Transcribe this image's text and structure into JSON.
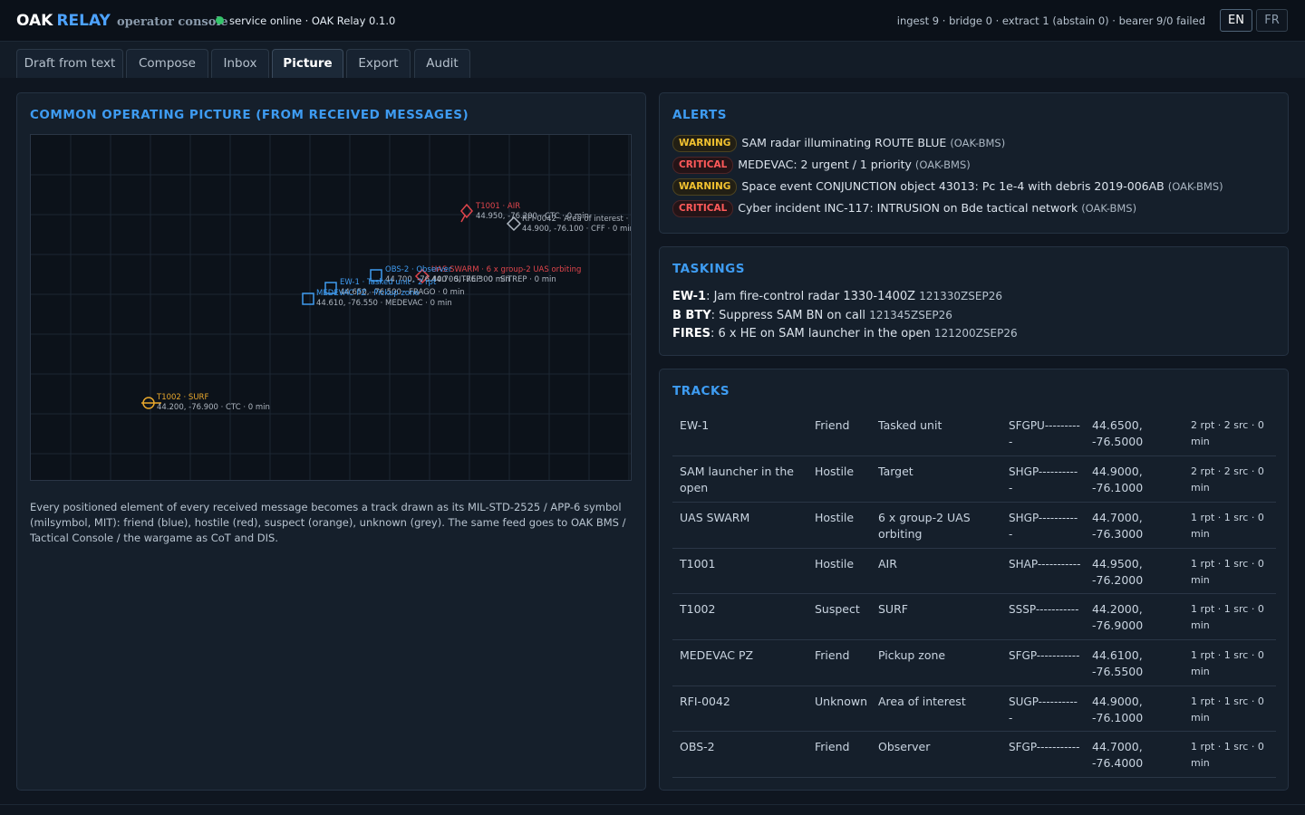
{
  "header": {
    "brand_oak": "OAK",
    "brand_relay": "RELAY",
    "brand_sub": "operator console",
    "status_text": "service online · OAK Relay 0.1.0",
    "counters": "ingest 9 · bridge 0 · extract 1 (abstain 0) · bearer 9/0 failed",
    "lang_en": "EN",
    "lang_fr": "FR",
    "status_color": "#34c46a"
  },
  "tabs": [
    {
      "label": "Draft from text"
    },
    {
      "label": "Compose"
    },
    {
      "label": "Inbox"
    },
    {
      "label": "Picture"
    },
    {
      "label": "Export"
    },
    {
      "label": "Audit"
    }
  ],
  "active_tab": "Picture",
  "cop": {
    "title": "COMMON OPERATING PICTURE (FROM RECEIVED MESSAGES)",
    "caption": "Every positioned element of every received message becomes a track drawn as its MIL-STD-2525 / APP-6 symbol (milsymbol, MIT): friend (blue), hostile (red), suspect (orange), unknown (grey). The same feed goes to OAK BMS / Tactical Console / the wargame as CoT and DIS.",
    "colors": {
      "friend": "#3f9bf0",
      "hostile": "#e0454c",
      "suspect": "#e8a72c",
      "unknown": "#aeb6c0"
    },
    "markers": [
      {
        "affil": "hostile",
        "shape": "air",
        "line1": "T1001 · AIR",
        "line2": "44.950, -76.200 · CTC · 0 min"
      },
      {
        "affil": "unknown",
        "shape": "diamond",
        "line1": "RFI-0042 · Area of interest · Targ",
        "line2": "44.900, -76.100 · CFF · 0 min"
      },
      {
        "affil": "hostile",
        "shape": "diamond",
        "line1": "UAS SWARM · 6 x group-2 UAS orbiting",
        "line2": "44.700, -76.300 · SITREP · 0 min"
      },
      {
        "affil": "friend",
        "shape": "square",
        "line1": "OBS-2 · Observer",
        "line2": "44.700, -76.400 · SITREP · 0 min"
      },
      {
        "affil": "friend",
        "shape": "square",
        "line1": "EW-1 · Tasked unit · 2 rpt",
        "line2": "44.650, -76.500 · FRAGO · 0 min"
      },
      {
        "affil": "friend",
        "shape": "square",
        "line1": "MEDEVAC PZ · Pickup zone",
        "line2": "44.610, -76.550 · MEDEVAC · 0 min"
      },
      {
        "affil": "suspect",
        "shape": "surface",
        "line1": "T1002 · SURF",
        "line2": "44.200, -76.900 · CTC · 0 min"
      }
    ]
  },
  "alerts": {
    "title": "ALERTS",
    "items": [
      {
        "level": "WARNING",
        "text": "SAM radar illuminating ROUTE BLUE",
        "source": "(OAK-BMS)"
      },
      {
        "level": "CRITICAL",
        "text": "MEDEVAC: 2 urgent / 1 priority",
        "source": "(OAK-BMS)"
      },
      {
        "level": "WARNING",
        "text": "Space event CONJUNCTION object 43013: Pc 1e-4 with debris 2019-006AB",
        "source": "(OAK-BMS)"
      },
      {
        "level": "CRITICAL",
        "text": "Cyber incident INC-117: INTRUSION on Bde tactical network",
        "source": "(OAK-BMS)"
      }
    ]
  },
  "taskings": {
    "title": "TASKINGS",
    "items": [
      {
        "unit": "EW-1",
        "text": ": Jam fire-control radar 1330-1400Z ",
        "dtg": "121330ZSEP26"
      },
      {
        "unit": "B BTY",
        "text": ": Suppress SAM BN on call ",
        "dtg": "121345ZSEP26"
      },
      {
        "unit": "FIRES",
        "text": ": 6 x HE on SAM launcher in the open ",
        "dtg": "121200ZSEP26"
      }
    ]
  },
  "tracks": {
    "title": "TRACKS",
    "rows": [
      {
        "name": "EW-1",
        "affil": "Friend",
        "desc": "Tasked unit",
        "sidc": "SFGPU----------",
        "pos": "44.6500, -76.5000",
        "meta": "2 rpt · 2 src · 0 min"
      },
      {
        "name": "SAM launcher in the open",
        "affil": "Hostile",
        "desc": "Target",
        "sidc": "SHGP-----------",
        "pos": "44.9000, -76.1000",
        "meta": "2 rpt · 2 src · 0 min"
      },
      {
        "name": "UAS SWARM",
        "affil": "Hostile",
        "desc": "6 x group-2 UAS orbiting",
        "sidc": "SHGP-----------",
        "pos": "44.7000, -76.3000",
        "meta": "1 rpt · 1 src · 0 min"
      },
      {
        "name": "T1001",
        "affil": "Hostile",
        "desc": "AIR",
        "sidc": "SHAP-----------",
        "pos": "44.9500, -76.2000",
        "meta": "1 rpt · 1 src · 0 min"
      },
      {
        "name": "T1002",
        "affil": "Suspect",
        "desc": "SURF",
        "sidc": "SSSP-----------",
        "pos": "44.2000, -76.9000",
        "meta": "1 rpt · 1 src · 0 min"
      },
      {
        "name": "MEDEVAC PZ",
        "affil": "Friend",
        "desc": "Pickup zone",
        "sidc": "SFGP-----------",
        "pos": "44.6100, -76.5500",
        "meta": "1 rpt · 1 src · 0 min"
      },
      {
        "name": "RFI-0042",
        "affil": "Unknown",
        "desc": "Area of interest",
        "sidc": "SUGP-----------",
        "pos": "44.9000, -76.1000",
        "meta": "1 rpt · 1 src · 0 min"
      },
      {
        "name": "OBS-2",
        "affil": "Friend",
        "desc": "Observer",
        "sidc": "SFGP-----------",
        "pos": "44.7000, -76.4000",
        "meta": "1 rpt · 1 src · 0 min"
      }
    ]
  }
}
